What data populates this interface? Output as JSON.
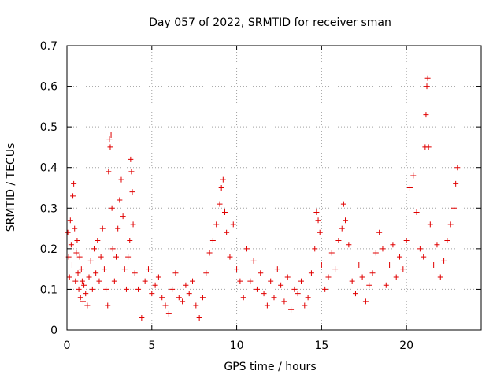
{
  "chart_data": {
    "type": "scatter",
    "title": "Day 057 of 2022, SRMTID for receiver sman",
    "xlabel": "GPS time / hours",
    "ylabel": "SRMTID / TECUs",
    "xlim": [
      0,
      24.4
    ],
    "ylim": [
      0,
      0.7
    ],
    "xticks": [
      0,
      5,
      10,
      15,
      20
    ],
    "xtick_labels": [
      "0",
      "5",
      "10",
      "15",
      "20"
    ],
    "yticks": [
      0,
      0.1,
      0.2,
      0.3,
      0.4,
      0.5,
      0.6,
      0.7
    ],
    "ytick_labels": [
      "0",
      "0.1",
      "0.2",
      "0.3",
      "0.4",
      "0.5",
      "0.6",
      "0.7"
    ],
    "grid": true,
    "marker": "+",
    "marker_color": "#e00000",
    "series": [
      {
        "name": "SRMTID",
        "points": [
          [
            0.05,
            0.24
          ],
          [
            0.1,
            0.18
          ],
          [
            0.15,
            0.13
          ],
          [
            0.2,
            0.27
          ],
          [
            0.25,
            0.21
          ],
          [
            0.3,
            0.16
          ],
          [
            0.35,
            0.33
          ],
          [
            0.4,
            0.36
          ],
          [
            0.45,
            0.25
          ],
          [
            0.5,
            0.12
          ],
          [
            0.55,
            0.19
          ],
          [
            0.6,
            0.22
          ],
          [
            0.65,
            0.14
          ],
          [
            0.7,
            0.1
          ],
          [
            0.75,
            0.18
          ],
          [
            0.8,
            0.08
          ],
          [
            0.85,
            0.15
          ],
          [
            0.9,
            0.12
          ],
          [
            0.95,
            0.07
          ],
          [
            1.0,
            0.11
          ],
          [
            1.1,
            0.09
          ],
          [
            1.2,
            0.06
          ],
          [
            1.3,
            0.13
          ],
          [
            1.4,
            0.17
          ],
          [
            1.5,
            0.1
          ],
          [
            1.6,
            0.2
          ],
          [
            1.7,
            0.14
          ],
          [
            1.8,
            0.22
          ],
          [
            1.9,
            0.12
          ],
          [
            2.0,
            0.18
          ],
          [
            2.1,
            0.25
          ],
          [
            2.2,
            0.15
          ],
          [
            2.3,
            0.1
          ],
          [
            2.4,
            0.06
          ],
          [
            2.45,
            0.39
          ],
          [
            2.5,
            0.47
          ],
          [
            2.55,
            0.45
          ],
          [
            2.6,
            0.48
          ],
          [
            2.65,
            0.3
          ],
          [
            2.7,
            0.2
          ],
          [
            2.8,
            0.12
          ],
          [
            2.9,
            0.18
          ],
          [
            3.0,
            0.25
          ],
          [
            3.1,
            0.32
          ],
          [
            3.2,
            0.37
          ],
          [
            3.3,
            0.28
          ],
          [
            3.4,
            0.15
          ],
          [
            3.5,
            0.1
          ],
          [
            3.6,
            0.18
          ],
          [
            3.7,
            0.22
          ],
          [
            3.75,
            0.42
          ],
          [
            3.8,
            0.39
          ],
          [
            3.85,
            0.34
          ],
          [
            3.9,
            0.26
          ],
          [
            4.0,
            0.14
          ],
          [
            4.2,
            0.1
          ],
          [
            4.4,
            0.03
          ],
          [
            4.6,
            0.12
          ],
          [
            4.8,
            0.15
          ],
          [
            5.0,
            0.09
          ],
          [
            5.2,
            0.11
          ],
          [
            5.4,
            0.13
          ],
          [
            5.6,
            0.08
          ],
          [
            5.8,
            0.06
          ],
          [
            6.0,
            0.04
          ],
          [
            6.2,
            0.1
          ],
          [
            6.4,
            0.14
          ],
          [
            6.6,
            0.08
          ],
          [
            6.8,
            0.07
          ],
          [
            7.0,
            0.11
          ],
          [
            7.2,
            0.09
          ],
          [
            7.4,
            0.12
          ],
          [
            7.6,
            0.06
          ],
          [
            7.8,
            0.03
          ],
          [
            8.0,
            0.08
          ],
          [
            8.2,
            0.14
          ],
          [
            8.4,
            0.19
          ],
          [
            8.6,
            0.22
          ],
          [
            8.8,
            0.26
          ],
          [
            9.0,
            0.31
          ],
          [
            9.1,
            0.35
          ],
          [
            9.2,
            0.37
          ],
          [
            9.3,
            0.29
          ],
          [
            9.4,
            0.24
          ],
          [
            9.6,
            0.18
          ],
          [
            9.8,
            0.26
          ],
          [
            10.0,
            0.15
          ],
          [
            10.2,
            0.12
          ],
          [
            10.4,
            0.08
          ],
          [
            10.6,
            0.2
          ],
          [
            10.8,
            0.12
          ],
          [
            11.0,
            0.17
          ],
          [
            11.2,
            0.1
          ],
          [
            11.4,
            0.14
          ],
          [
            11.6,
            0.09
          ],
          [
            11.8,
            0.06
          ],
          [
            12.0,
            0.12
          ],
          [
            12.2,
            0.08
          ],
          [
            12.4,
            0.15
          ],
          [
            12.6,
            0.11
          ],
          [
            12.8,
            0.07
          ],
          [
            13.0,
            0.13
          ],
          [
            13.2,
            0.05
          ],
          [
            13.4,
            0.1
          ],
          [
            13.6,
            0.09
          ],
          [
            13.8,
            0.12
          ],
          [
            14.0,
            0.06
          ],
          [
            14.2,
            0.08
          ],
          [
            14.4,
            0.14
          ],
          [
            14.6,
            0.2
          ],
          [
            14.7,
            0.29
          ],
          [
            14.8,
            0.27
          ],
          [
            14.9,
            0.24
          ],
          [
            15.0,
            0.16
          ],
          [
            15.2,
            0.1
          ],
          [
            15.4,
            0.13
          ],
          [
            15.6,
            0.19
          ],
          [
            15.8,
            0.15
          ],
          [
            16.0,
            0.22
          ],
          [
            16.2,
            0.25
          ],
          [
            16.3,
            0.31
          ],
          [
            16.4,
            0.27
          ],
          [
            16.6,
            0.21
          ],
          [
            16.8,
            0.12
          ],
          [
            17.0,
            0.09
          ],
          [
            17.2,
            0.16
          ],
          [
            17.4,
            0.13
          ],
          [
            17.6,
            0.07
          ],
          [
            17.8,
            0.11
          ],
          [
            18.0,
            0.14
          ],
          [
            18.2,
            0.19
          ],
          [
            18.4,
            0.24
          ],
          [
            18.6,
            0.2
          ],
          [
            18.8,
            0.11
          ],
          [
            19.0,
            0.16
          ],
          [
            19.2,
            0.21
          ],
          [
            19.4,
            0.13
          ],
          [
            19.6,
            0.18
          ],
          [
            19.8,
            0.15
          ],
          [
            20.0,
            0.22
          ],
          [
            20.2,
            0.35
          ],
          [
            20.4,
            0.38
          ],
          [
            20.6,
            0.29
          ],
          [
            20.8,
            0.2
          ],
          [
            21.0,
            0.18
          ],
          [
            21.1,
            0.45
          ],
          [
            21.15,
            0.53
          ],
          [
            21.2,
            0.6
          ],
          [
            21.25,
            0.62
          ],
          [
            21.3,
            0.45
          ],
          [
            21.4,
            0.26
          ],
          [
            21.6,
            0.16
          ],
          [
            21.8,
            0.21
          ],
          [
            22.0,
            0.13
          ],
          [
            22.2,
            0.17
          ],
          [
            22.4,
            0.22
          ],
          [
            22.6,
            0.26
          ],
          [
            22.8,
            0.3
          ],
          [
            22.9,
            0.36
          ],
          [
            23.0,
            0.4
          ]
        ]
      }
    ]
  }
}
